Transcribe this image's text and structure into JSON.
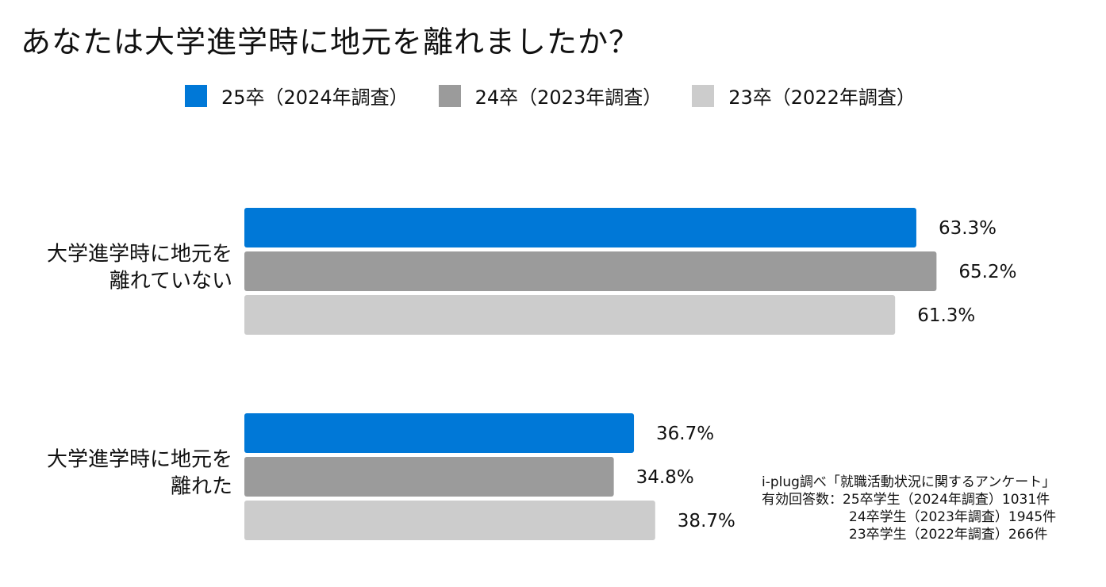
{
  "title": "あなたは大学進学時に地元を離れましたか？",
  "legend": [
    {
      "label": "25卒（2024年調査）",
      "color": "#0078d7"
    },
    {
      "label": "24卒（2023年調査）",
      "color": "#9b9b9b"
    },
    {
      "label": "23卒（2022年調査）",
      "color": "#cccccc"
    }
  ],
  "chart_data": {
    "type": "bar",
    "orientation": "horizontal",
    "categories": [
      [
        "大学進学時に地元を",
        "離れていない"
      ],
      [
        "大学進学時に地元を",
        "離れた"
      ]
    ],
    "series": [
      {
        "name": "25卒（2024年調査）",
        "color": "#0078d7",
        "values": [
          63.3,
          36.7
        ]
      },
      {
        "name": "24卒（2023年調査）",
        "color": "#9b9b9b",
        "values": [
          65.2,
          34.8
        ]
      },
      {
        "name": "23卒（2022年調査）",
        "color": "#cccccc",
        "values": [
          61.3,
          38.7
        ]
      }
    ],
    "value_suffix": "%",
    "xlim": [
      0,
      100
    ],
    "grid": false,
    "legend_position": "top"
  },
  "note": {
    "source": "i-plug調べ「就職活動状況に関するアンケート」",
    "lines": [
      "有効回答数：25卒学生（2024年調査）1031件",
      "24卒学生（2023年調査）1945件",
      "23卒学生（2022年調査）266件"
    ]
  }
}
